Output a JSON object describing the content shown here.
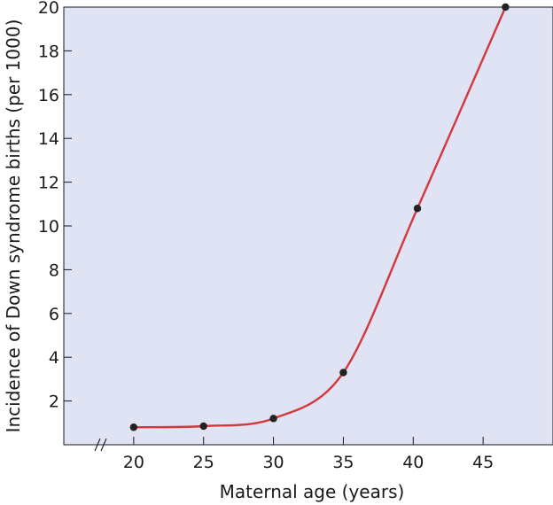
{
  "chart_data": {
    "type": "line",
    "xlabel": "Maternal age (years)",
    "ylabel": "Incidence of Down syndrome births (per 1000)",
    "x_ticks": [
      20,
      25,
      30,
      35,
      40,
      45
    ],
    "y_ticks": [
      2,
      4,
      6,
      8,
      10,
      12,
      14,
      16,
      18,
      20
    ],
    "xlim": [
      15,
      50
    ],
    "ylim": [
      0,
      20
    ],
    "x_axis_break": true,
    "grid": false,
    "series": [
      {
        "x": [
          20,
          25,
          30,
          35,
          40.3,
          46.6
        ],
        "y": [
          0.8,
          0.85,
          1.2,
          3.3,
          10.8,
          20
        ],
        "line_color": "#d4373c",
        "marker_color": "#222222"
      }
    ]
  },
  "colors": {
    "plot_background": "#dfe3f3",
    "axis": "#1a1a1a"
  }
}
